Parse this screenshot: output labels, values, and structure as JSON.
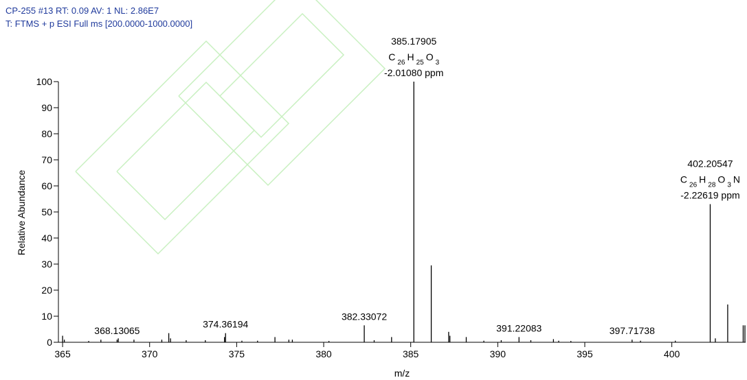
{
  "chart_data": {
    "type": "stem",
    "title": "CP-255 #13  RT: 0.09  AV: 1  NL: 2.86E7",
    "subtitle": "T: FTMS + p ESI Full ms [200.0000-1000.0000]",
    "x_label": "m/z",
    "y_label": "Relative Abundance",
    "color": "#000000",
    "x": [
      365.0,
      365.1,
      366.5,
      367.2,
      368.13065,
      368.2,
      369.1,
      370.7,
      371.1,
      371.2,
      372.1,
      373.2,
      374.3,
      374.36194,
      375.3,
      376.2,
      377.2,
      378.0,
      378.2,
      380.3,
      382.33072,
      382.9,
      383.9,
      385.17905,
      386.18,
      387.18,
      387.25,
      388.19,
      389.2,
      390.2,
      391.22083,
      391.9,
      393.2,
      393.5,
      394.2,
      397.71738,
      398.2,
      400.2,
      402.20547,
      402.5,
      403.21,
      404.1,
      404.2
    ],
    "values": [
      2.5,
      1,
      0.5,
      1,
      1,
      1.5,
      1,
      1,
      3.5,
      1.5,
      0.8,
      0.8,
      2,
      3.5,
      0.6,
      0.6,
      2,
      1,
      1,
      0.5,
      6.5,
      0.8,
      2,
      100,
      29.5,
      4,
      2.5,
      2,
      0.6,
      0.8,
      2,
      0.8,
      1.2,
      0.6,
      0.5,
      1,
      0.6,
      0.6,
      53,
      1.5,
      14.5,
      6.5,
      6.5
    ],
    "annotations": [
      {
        "x": 368.13065
      },
      {
        "x": 374.36194
      },
      {
        "x": 382.33072
      },
      {
        "x": 385.17905,
        "formula": [
          {
            "el": "C",
            "n": "26"
          },
          {
            "el": "H",
            "n": "25"
          },
          {
            "el": "O",
            "n": "3"
          }
        ],
        "error": "-2.01080 ppm"
      },
      {
        "x": 391.22083
      },
      {
        "x": 397.71738
      },
      {
        "x": 402.20547,
        "formula": [
          {
            "el": "C",
            "n": "26"
          },
          {
            "el": "H",
            "n": "28"
          },
          {
            "el": "O",
            "n": "3"
          },
          {
            "el": "N"
          }
        ],
        "error": "-2.22619 ppm"
      }
    ],
    "xlim": [
      364.76,
      404.24
    ],
    "xticks": [
      365,
      370,
      375,
      380,
      385,
      390,
      395,
      400
    ],
    "ylim": [
      0,
      100
    ],
    "yticks": [
      0,
      10,
      20,
      30,
      40,
      50,
      60,
      70,
      80,
      90,
      100
    ]
  }
}
